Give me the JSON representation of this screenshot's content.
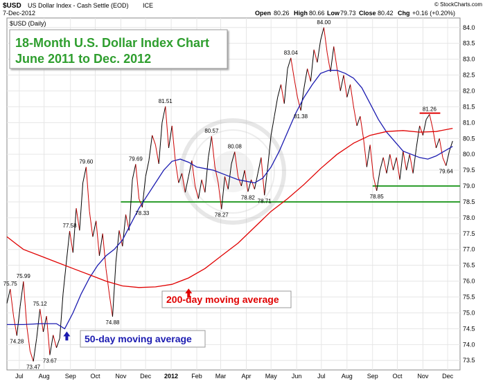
{
  "header": {
    "symbol": "$USD",
    "name": "US Dollar Index - Cash Settle (EOD)",
    "exchange": "ICE",
    "date": "7-Dec-2012",
    "watermark": "© StockCharts.com",
    "ohlc": {
      "open_label": "Open",
      "open": "80.26",
      "high_label": "High",
      "high": "80.66",
      "low_label": "Low",
      "low": "79.73",
      "close_label": "Close",
      "close": "80.42",
      "chg_label": "Chg",
      "chg": "+0.16 (+0.20%)"
    },
    "panel_label": "$USD (Daily)"
  },
  "title_box": {
    "line1": "18-Month U.S. Dollar Index Chart",
    "line2": "June 2011 to Dec. 2012"
  },
  "labels": {
    "ma200": "200-day moving average",
    "ma50": "50-day moving average"
  },
  "colors": {
    "price": "#000000",
    "price_down": "#cc0000",
    "ma50": "#1a1ab0",
    "ma200": "#e00000",
    "support": "#2e9e2e",
    "resistance": "#e00000",
    "title": "#2e9e2e",
    "grid": "#e6e6e6"
  },
  "chart_data": {
    "type": "line",
    "ylim": [
      73.2,
      84.3
    ],
    "y_ticks": [
      "73.5",
      "74.0",
      "74.5",
      "75.0",
      "75.5",
      "76.0",
      "76.5",
      "77.0",
      "77.5",
      "78.0",
      "78.5",
      "79.0",
      "79.5",
      "80.0",
      "80.5",
      "81.0",
      "81.5",
      "82.0",
      "82.5",
      "83.0",
      "83.5",
      "84.0"
    ],
    "x_ticks": [
      {
        "label": "Jul",
        "t": 15
      },
      {
        "label": "Aug",
        "t": 45
      },
      {
        "label": "Sep",
        "t": 77
      },
      {
        "label": "Oct",
        "t": 107
      },
      {
        "label": "Nov",
        "t": 138
      },
      {
        "label": "Dec",
        "t": 168
      },
      {
        "label": "2012",
        "t": 199
      },
      {
        "label": "Feb",
        "t": 230
      },
      {
        "label": "Mar",
        "t": 259
      },
      {
        "label": "Apr",
        "t": 290
      },
      {
        "label": "May",
        "t": 320
      },
      {
        "label": "Jun",
        "t": 351
      },
      {
        "label": "Jul",
        "t": 381
      },
      {
        "label": "Aug",
        "t": 412
      },
      {
        "label": "Sep",
        "t": 443
      },
      {
        "label": "Oct",
        "t": 473
      },
      {
        "label": "Nov",
        "t": 504
      },
      {
        "label": "Dec",
        "t": 534
      }
    ],
    "x_range": [
      0,
      549
    ],
    "series": [
      {
        "key": "price",
        "points": [
          [
            0,
            75.3
          ],
          [
            4,
            75.75
          ],
          [
            8,
            74.9
          ],
          [
            12,
            74.28
          ],
          [
            16,
            75.2
          ],
          [
            20,
            75.99
          ],
          [
            24,
            74.6
          ],
          [
            28,
            73.8
          ],
          [
            32,
            73.47
          ],
          [
            36,
            74.2
          ],
          [
            40,
            75.12
          ],
          [
            44,
            74.4
          ],
          [
            48,
            74.9
          ],
          [
            52,
            73.67
          ],
          [
            56,
            74.3
          ],
          [
            60,
            73.9
          ],
          [
            64,
            74.2
          ],
          [
            68,
            75.6
          ],
          [
            72,
            76.6
          ],
          [
            76,
            77.58
          ],
          [
            80,
            76.9
          ],
          [
            84,
            78.3
          ],
          [
            88,
            77.6
          ],
          [
            92,
            79.1
          ],
          [
            96,
            79.6
          ],
          [
            100,
            78.2
          ],
          [
            104,
            77.4
          ],
          [
            108,
            77.9
          ],
          [
            112,
            76.8
          ],
          [
            116,
            77.5
          ],
          [
            120,
            76.4
          ],
          [
            124,
            75.6
          ],
          [
            128,
            74.88
          ],
          [
            132,
            76.6
          ],
          [
            136,
            77.6
          ],
          [
            140,
            77.1
          ],
          [
            144,
            78.1
          ],
          [
            148,
            77.6
          ],
          [
            152,
            79.2
          ],
          [
            156,
            79.69
          ],
          [
            160,
            78.6
          ],
          [
            164,
            78.33
          ],
          [
            168,
            79.3
          ],
          [
            172,
            79.8
          ],
          [
            176,
            80.6
          ],
          [
            180,
            80.3
          ],
          [
            184,
            79.7
          ],
          [
            188,
            81.0
          ],
          [
            192,
            81.51
          ],
          [
            196,
            80.2
          ],
          [
            200,
            80.9
          ],
          [
            204,
            79.8
          ],
          [
            208,
            79.1
          ],
          [
            212,
            79.4
          ],
          [
            216,
            78.8
          ],
          [
            220,
            79.3
          ],
          [
            224,
            79.8
          ],
          [
            228,
            79.0
          ],
          [
            232,
            78.6
          ],
          [
            236,
            79.2
          ],
          [
            240,
            78.8
          ],
          [
            244,
            79.9
          ],
          [
            248,
            80.57
          ],
          [
            252,
            79.6
          ],
          [
            256,
            79.1
          ],
          [
            260,
            78.27
          ],
          [
            264,
            79.3
          ],
          [
            268,
            78.9
          ],
          [
            272,
            79.7
          ],
          [
            276,
            80.08
          ],
          [
            280,
            79.3
          ],
          [
            284,
            79.0
          ],
          [
            288,
            79.5
          ],
          [
            292,
            78.82
          ],
          [
            296,
            79.2
          ],
          [
            300,
            78.9
          ],
          [
            304,
            79.4
          ],
          [
            308,
            79.9
          ],
          [
            312,
            78.71
          ],
          [
            316,
            79.6
          ],
          [
            320,
            80.6
          ],
          [
            324,
            81.2
          ],
          [
            328,
            81.8
          ],
          [
            332,
            82.2
          ],
          [
            336,
            81.6
          ],
          [
            340,
            82.7
          ],
          [
            344,
            83.04
          ],
          [
            348,
            82.4
          ],
          [
            352,
            81.8
          ],
          [
            356,
            81.38
          ],
          [
            360,
            82.1
          ],
          [
            364,
            82.7
          ],
          [
            368,
            82.3
          ],
          [
            372,
            83.3
          ],
          [
            376,
            82.9
          ],
          [
            380,
            83.6
          ],
          [
            384,
            84.0
          ],
          [
            388,
            83.2
          ],
          [
            392,
            82.6
          ],
          [
            396,
            83.4
          ],
          [
            400,
            82.7
          ],
          [
            404,
            82.0
          ],
          [
            408,
            82.5
          ],
          [
            412,
            81.8
          ],
          [
            416,
            82.2
          ],
          [
            420,
            81.5
          ],
          [
            424,
            80.9
          ],
          [
            428,
            81.2
          ],
          [
            432,
            80.5
          ],
          [
            436,
            79.6
          ],
          [
            440,
            80.3
          ],
          [
            444,
            79.3
          ],
          [
            448,
            78.85
          ],
          [
            452,
            79.5
          ],
          [
            456,
            79.9
          ],
          [
            460,
            79.4
          ],
          [
            464,
            80.0
          ],
          [
            468,
            79.5
          ],
          [
            472,
            79.9
          ],
          [
            476,
            79.2
          ],
          [
            480,
            80.1
          ],
          [
            484,
            79.5
          ],
          [
            488,
            80.0
          ],
          [
            492,
            79.4
          ],
          [
            496,
            80.2
          ],
          [
            500,
            80.9
          ],
          [
            504,
            80.6
          ],
          [
            508,
            81.1
          ],
          [
            512,
            81.26
          ],
          [
            516,
            80.8
          ],
          [
            520,
            80.2
          ],
          [
            524,
            80.5
          ],
          [
            528,
            79.9
          ],
          [
            532,
            79.64
          ],
          [
            536,
            80.1
          ],
          [
            540,
            80.42
          ]
        ]
      },
      {
        "key": "ma50",
        "points": [
          [
            0,
            74.63
          ],
          [
            20,
            74.63
          ],
          [
            40,
            74.66
          ],
          [
            60,
            74.66
          ],
          [
            70,
            74.5
          ],
          [
            80,
            75.0
          ],
          [
            90,
            75.6
          ],
          [
            100,
            76.1
          ],
          [
            110,
            76.5
          ],
          [
            120,
            76.8
          ],
          [
            130,
            77.0
          ],
          [
            140,
            77.3
          ],
          [
            150,
            77.8
          ],
          [
            160,
            78.3
          ],
          [
            170,
            78.7
          ],
          [
            180,
            79.1
          ],
          [
            190,
            79.5
          ],
          [
            200,
            79.78
          ],
          [
            210,
            79.85
          ],
          [
            220,
            79.75
          ],
          [
            230,
            79.6
          ],
          [
            240,
            79.55
          ],
          [
            250,
            79.5
          ],
          [
            260,
            79.4
          ],
          [
            270,
            79.3
          ],
          [
            280,
            79.2
          ],
          [
            290,
            79.15
          ],
          [
            300,
            79.1
          ],
          [
            310,
            79.25
          ],
          [
            320,
            79.6
          ],
          [
            330,
            80.1
          ],
          [
            340,
            80.7
          ],
          [
            350,
            81.3
          ],
          [
            360,
            81.8
          ],
          [
            370,
            82.2
          ],
          [
            380,
            82.55
          ],
          [
            390,
            82.65
          ],
          [
            400,
            82.65
          ],
          [
            410,
            82.55
          ],
          [
            420,
            82.4
          ],
          [
            430,
            82.1
          ],
          [
            440,
            81.6
          ],
          [
            450,
            81.1
          ],
          [
            460,
            80.7
          ],
          [
            470,
            80.4
          ],
          [
            480,
            80.1
          ],
          [
            490,
            80.0
          ],
          [
            500,
            79.9
          ],
          [
            510,
            79.85
          ],
          [
            520,
            79.95
          ],
          [
            530,
            80.1
          ],
          [
            540,
            80.25
          ]
        ]
      },
      {
        "key": "ma200",
        "points": [
          [
            0,
            77.4
          ],
          [
            10,
            77.2
          ],
          [
            20,
            77.0
          ],
          [
            40,
            76.8
          ],
          [
            60,
            76.6
          ],
          [
            80,
            76.4
          ],
          [
            100,
            76.2
          ],
          [
            120,
            76.0
          ],
          [
            140,
            75.85
          ],
          [
            160,
            75.8
          ],
          [
            180,
            75.82
          ],
          [
            200,
            75.9
          ],
          [
            220,
            76.1
          ],
          [
            240,
            76.4
          ],
          [
            260,
            76.8
          ],
          [
            280,
            77.2
          ],
          [
            300,
            77.7
          ],
          [
            320,
            78.2
          ],
          [
            340,
            78.6
          ],
          [
            360,
            79.05
          ],
          [
            380,
            79.55
          ],
          [
            400,
            80.0
          ],
          [
            420,
            80.35
          ],
          [
            440,
            80.6
          ],
          [
            460,
            80.72
          ],
          [
            480,
            80.75
          ],
          [
            500,
            80.7
          ],
          [
            520,
            80.72
          ],
          [
            540,
            80.82
          ]
        ]
      }
    ],
    "annotations": [
      {
        "text": "75.75",
        "t": 4,
        "y": 75.75,
        "pos": "above"
      },
      {
        "text": "75.99",
        "t": 20,
        "y": 75.99,
        "pos": "above"
      },
      {
        "text": "74.28",
        "t": 12,
        "y": 74.28,
        "pos": "below"
      },
      {
        "text": "75.12",
        "t": 40,
        "y": 75.12,
        "pos": "above"
      },
      {
        "text": "73.47",
        "t": 32,
        "y": 73.47,
        "pos": "below"
      },
      {
        "text": "73.67",
        "t": 52,
        "y": 73.67,
        "pos": "below"
      },
      {
        "text": "77.58",
        "t": 76,
        "y": 77.58,
        "pos": "above"
      },
      {
        "text": "79.60",
        "t": 96,
        "y": 79.6,
        "pos": "above"
      },
      {
        "text": "74.88",
        "t": 128,
        "y": 74.88,
        "pos": "below"
      },
      {
        "text": "79.69",
        "t": 156,
        "y": 79.69,
        "pos": "above"
      },
      {
        "text": "78.33",
        "t": 164,
        "y": 78.33,
        "pos": "below"
      },
      {
        "text": "81.51",
        "t": 192,
        "y": 81.51,
        "pos": "above"
      },
      {
        "text": "80.57",
        "t": 248,
        "y": 80.57,
        "pos": "above"
      },
      {
        "text": "78.27",
        "t": 260,
        "y": 78.27,
        "pos": "below"
      },
      {
        "text": "80.08",
        "t": 276,
        "y": 80.08,
        "pos": "above"
      },
      {
        "text": "78.82",
        "t": 292,
        "y": 78.82,
        "pos": "below"
      },
      {
        "text": "78.71",
        "t": 312,
        "y": 78.71,
        "pos": "below"
      },
      {
        "text": "83.04",
        "t": 344,
        "y": 83.04,
        "pos": "above"
      },
      {
        "text": "81.38",
        "t": 356,
        "y": 81.38,
        "pos": "below"
      },
      {
        "text": "84.00",
        "t": 384,
        "y": 84.0,
        "pos": "above"
      },
      {
        "text": "78.85",
        "t": 448,
        "y": 78.85,
        "pos": "below"
      },
      {
        "text": "81.26",
        "t": 512,
        "y": 81.26,
        "pos": "above"
      },
      {
        "text": "79.64",
        "t": 532,
        "y": 79.64,
        "pos": "below"
      }
    ],
    "support_lines": [
      {
        "y": 78.5,
        "t_from": 138,
        "t_to": 549,
        "color": "support"
      },
      {
        "y": 79.0,
        "t_from": 443,
        "t_to": 549,
        "color": "support"
      },
      {
        "y": 81.3,
        "t_from": 500,
        "t_to": 525,
        "color": "resistance"
      }
    ]
  }
}
